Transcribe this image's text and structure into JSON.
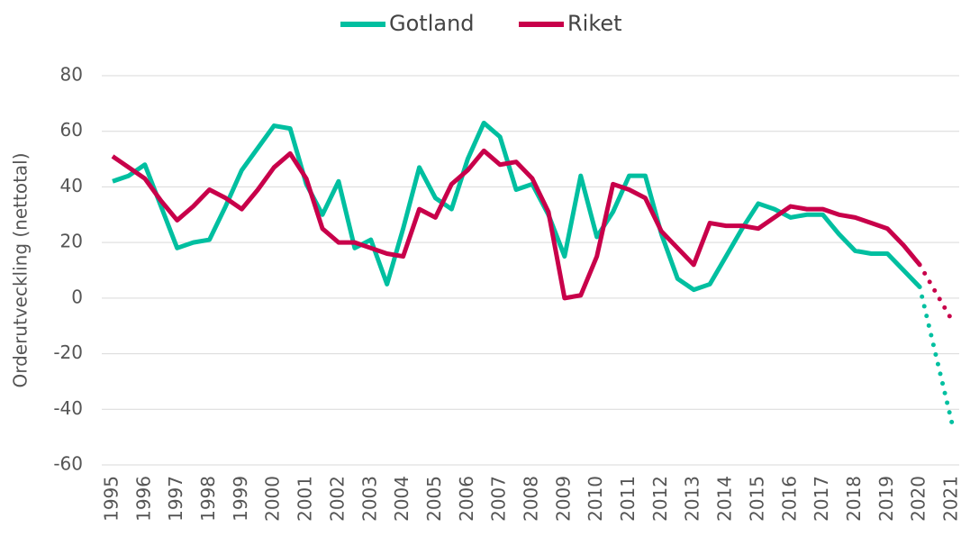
{
  "chart_data": {
    "type": "line",
    "y_label": "Orderutveckling (nettotal)",
    "x": [
      1995,
      1995.5,
      1996,
      1996.5,
      1997,
      1997.5,
      1998,
      1998.5,
      1999,
      1999.5,
      2000,
      2000.5,
      2001,
      2001.5,
      2002,
      2002.5,
      2003,
      2003.5,
      2004,
      2004.5,
      2005,
      2005.5,
      2006,
      2006.5,
      2007,
      2007.5,
      2008,
      2008.5,
      2009,
      2009.5,
      2010,
      2010.5,
      2011,
      2011.5,
      2012,
      2012.5,
      2013,
      2013.5,
      2014,
      2014.5,
      2015,
      2015.5,
      2016,
      2016.5,
      2017,
      2017.5,
      2018,
      2018.5,
      2019,
      2019.5,
      2020
    ],
    "series": [
      {
        "name": "Gotland",
        "color": "#00bfa0",
        "values": [
          42,
          44,
          48,
          33,
          18,
          20,
          21,
          33,
          46,
          54,
          62,
          61,
          41,
          30,
          42,
          18,
          21,
          5,
          25,
          47,
          36,
          32,
          50,
          63,
          58,
          39,
          41,
          30,
          15,
          44,
          22,
          31,
          44,
          44,
          23,
          7,
          3,
          5,
          15,
          25,
          34,
          32,
          29,
          30,
          30,
          23,
          17,
          16,
          16,
          10,
          4
        ],
        "forecast": {
          "x": [
            2020,
            2021
          ],
          "values": [
            4,
            -45
          ]
        }
      },
      {
        "name": "Riket",
        "color": "#c8004a",
        "values": [
          51,
          47,
          43,
          35,
          28,
          33,
          39,
          36,
          32,
          39,
          47,
          52,
          43,
          25,
          20,
          20,
          18,
          16,
          15,
          32,
          29,
          41,
          46,
          53,
          48,
          49,
          43,
          31,
          0,
          1,
          15,
          41,
          39,
          36,
          24,
          18,
          12,
          27,
          26,
          26,
          25,
          29,
          33,
          32,
          32,
          30,
          29,
          27,
          25,
          19,
          12
        ],
        "forecast": {
          "x": [
            2020,
            2021
          ],
          "values": [
            12,
            -8
          ]
        }
      }
    ],
    "xlim": [
      1995,
      2021
    ],
    "xticks": [
      1995,
      1996,
      1997,
      1998,
      1999,
      2000,
      2001,
      2002,
      2003,
      2004,
      2005,
      2006,
      2007,
      2008,
      2009,
      2010,
      2011,
      2012,
      2013,
      2014,
      2015,
      2016,
      2017,
      2018,
      2019,
      2020,
      2021
    ],
    "ylim": [
      -60,
      80
    ],
    "yticks": [
      -60,
      -40,
      -20,
      0,
      20,
      40,
      60,
      80
    ],
    "grid": true,
    "legend": "top"
  }
}
